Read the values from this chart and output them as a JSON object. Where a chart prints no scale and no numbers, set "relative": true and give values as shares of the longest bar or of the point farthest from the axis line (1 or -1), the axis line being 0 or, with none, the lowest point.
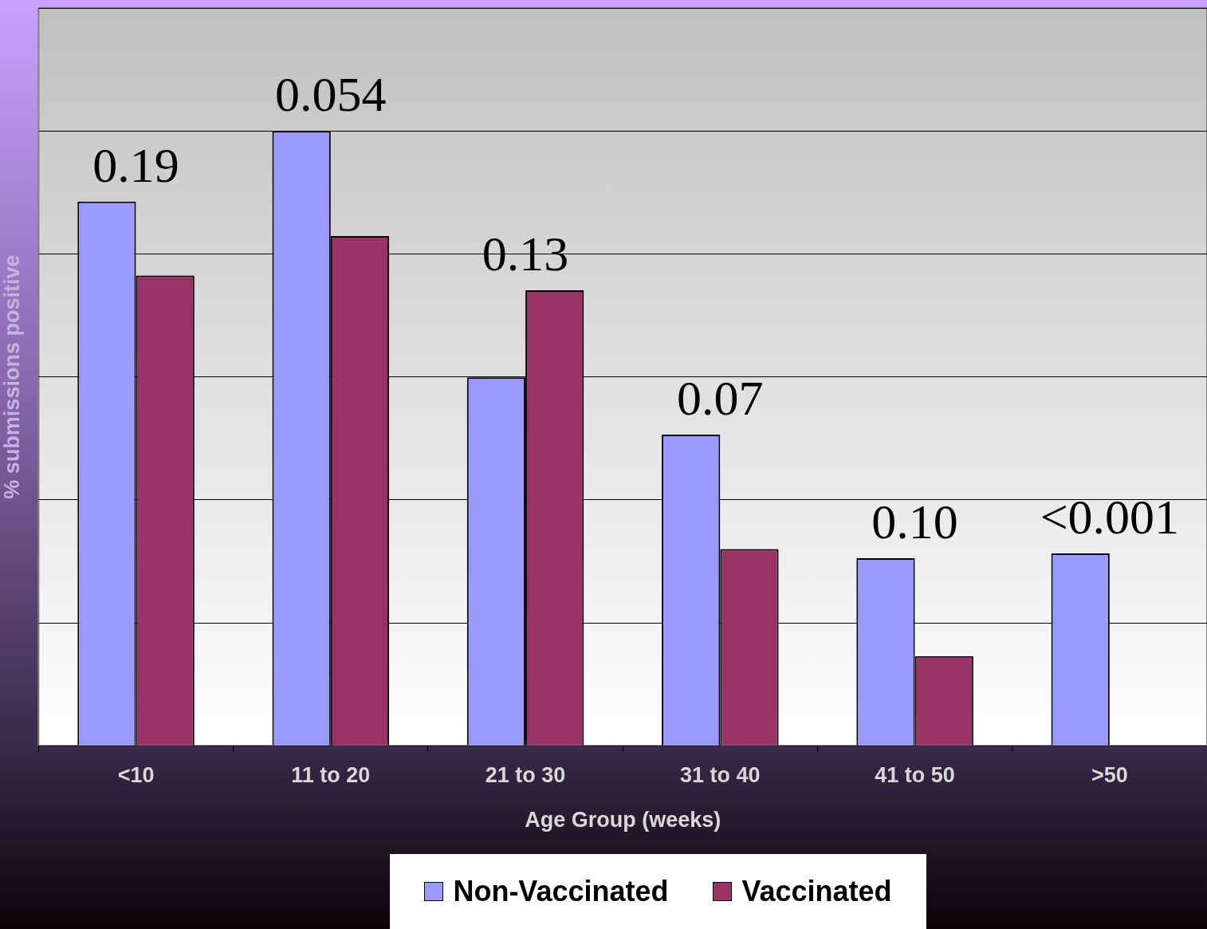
{
  "chart_data": {
    "type": "bar",
    "relative": true,
    "xlabel": "Age Group (weeks)",
    "ylabel": "% submissions positive",
    "categories": [
      "<10",
      "11 to 20",
      "21 to 30",
      "31 to 40",
      "41 to 50",
      ">50"
    ],
    "series": [
      {
        "name": "Non-Vaccinated",
        "color": "#9999ff",
        "values": [
          0.885,
          1,
          0.599,
          0.506,
          0.305,
          0.313
        ]
      },
      {
        "name": "Vaccinated",
        "color": "#993366",
        "values": [
          0.765,
          0.829,
          0.741,
          0.32,
          0.146,
          0
        ]
      }
    ],
    "annotations": [
      "0.19",
      "0.054",
      "0.13",
      "0.07",
      "0.10",
      "<0.001"
    ],
    "grid": "y",
    "legend": "bottom"
  }
}
